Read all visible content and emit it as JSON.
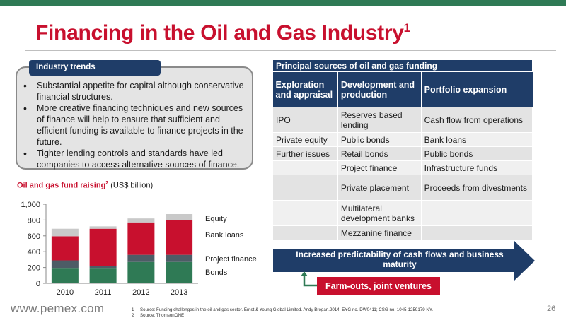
{
  "slide": {
    "title": "Financing in the Oil and Gas Industry",
    "title_superscript": "1",
    "page_number": "26",
    "url": "www.pemex.com"
  },
  "trends": {
    "tab_label": "Industry trends",
    "bullets": [
      "Substantial appetite for capital  although conservative financial structures.",
      "More creative financing techniques and new sources of finance will help to ensure that sufficient and efficient funding is available to finance projects in the future.",
      "Tighter lending controls and standards have led companies to access alternative sources of finance."
    ]
  },
  "fund_chart_title": {
    "main": "Oil and gas fund raising",
    "superscript": "2",
    "unit": " (US$ billion)"
  },
  "chart_data": {
    "type": "bar",
    "stacked": true,
    "categories": [
      "2010",
      "2011",
      "2012",
      "2013"
    ],
    "series": [
      {
        "name": "Bonds",
        "color": "#2f7a55",
        "values": [
          195,
          195,
          270,
          270
        ]
      },
      {
        "name": "Project finance",
        "color": "#4d5c66",
        "values": [
          95,
          25,
          90,
          90
        ]
      },
      {
        "name": "Bank loans",
        "color": "#c8102e",
        "values": [
          305,
          470,
          410,
          440
        ]
      },
      {
        "name": "Equity",
        "color": "#c9c9c9",
        "values": [
          95,
          30,
          50,
          75
        ]
      }
    ],
    "legend_order": [
      "Equity",
      "Bank loans",
      "Project finance",
      "Bonds"
    ],
    "yticks": [
      "0",
      "200",
      "400",
      "600",
      "800",
      "1,000"
    ],
    "ylim": [
      0,
      1000
    ]
  },
  "funding_table": {
    "title": "Principal sources of oil and gas funding",
    "headers": [
      "Exploration and appraisal",
      "Development and production",
      "Portfolio expansion"
    ],
    "rows": [
      [
        "IPO",
        "Reserves based lending",
        "Cash flow from operations"
      ],
      [
        "Private equity",
        "Public bonds",
        "Bank loans"
      ],
      [
        "Further issues",
        "Retail bonds",
        "Public bonds"
      ],
      [
        "",
        "Project finance",
        "Infrastructure funds"
      ],
      [
        "",
        "Private placement",
        "Proceeds from divestments"
      ],
      [
        "",
        "Multilateral development banks",
        ""
      ],
      [
        "",
        "Mezzanine finance",
        ""
      ]
    ]
  },
  "arrow_text": "Increased predictability of cash flows and business maturity",
  "farm_outs": "Farm-outs, joint ventures",
  "footnotes": [
    {
      "num": "1",
      "text": "Source: Funding challenges in the oil and gas sector. Ernst & Young Global Limited. Andy Brogan.2014. EYG no. DW0411; CSG no. 1045-1259179 NY."
    },
    {
      "num": "2",
      "text": "Source: ThomsonONE"
    }
  ],
  "colors": {
    "brand_red": "#c8102e",
    "navy": "#1f3d68",
    "green": "#2f7a55"
  }
}
